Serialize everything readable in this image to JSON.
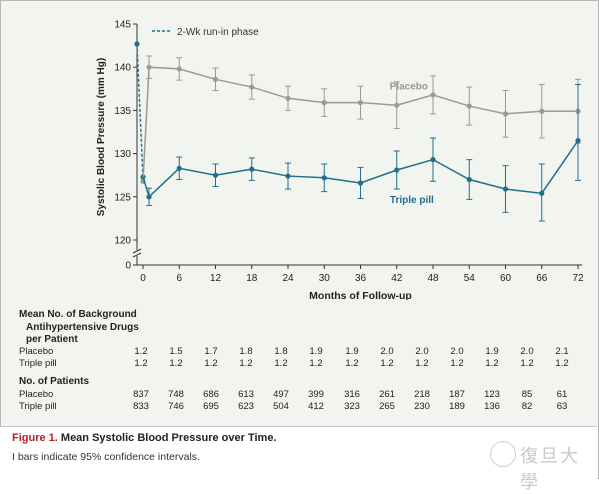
{
  "colors": {
    "placebo": "#9a9a9a",
    "triple": "#1f6f8b",
    "fig_label": "#b22222",
    "panel_bg": "#f2f4ef"
  },
  "chart_data": {
    "type": "line",
    "ylabel": "Systolic Blood Pressure (mm Hg)",
    "xlabel": "Months of Follow-up",
    "ylim": [
      0,
      145
    ],
    "y_axis_break": true,
    "yticks": [
      0,
      120,
      125,
      130,
      135,
      140,
      145
    ],
    "xticks": [
      0,
      6,
      12,
      18,
      24,
      30,
      36,
      42,
      48,
      54,
      60,
      66,
      72
    ],
    "legend_label": "2-Wk run-in phase",
    "run_in": {
      "x_start": -1,
      "start_value": 142.7,
      "placebo_end": 126.8,
      "triple_end": 127.3
    },
    "series": [
      {
        "name": "Placebo",
        "x": [
          1,
          6,
          12,
          18,
          24,
          30,
          36,
          42,
          48,
          54,
          60,
          66,
          72
        ],
        "values": [
          140.0,
          139.8,
          138.6,
          137.7,
          136.4,
          135.9,
          135.9,
          135.6,
          136.8,
          135.5,
          134.6,
          134.9,
          134.9
        ],
        "ci_low": [
          138.7,
          138.5,
          137.3,
          136.3,
          135.0,
          134.3,
          134.0,
          132.9,
          134.6,
          133.3,
          131.9,
          131.8,
          131.2
        ],
        "ci_high": [
          141.3,
          141.1,
          139.9,
          139.1,
          137.8,
          137.5,
          137.8,
          138.3,
          139.0,
          137.7,
          137.3,
          138.0,
          138.6
        ]
      },
      {
        "name": "Triple pill",
        "x": [
          1,
          6,
          12,
          18,
          24,
          30,
          36,
          42,
          48,
          54,
          60,
          66,
          72
        ],
        "values": [
          125.0,
          128.3,
          127.5,
          128.2,
          127.4,
          127.2,
          126.6,
          128.1,
          129.3,
          127.0,
          125.9,
          125.4,
          131.5
        ],
        "ci_low": [
          124.0,
          127.0,
          126.2,
          126.9,
          125.9,
          125.6,
          124.8,
          125.9,
          126.8,
          124.7,
          123.2,
          122.2,
          126.9
        ],
        "ci_high": [
          126.0,
          129.6,
          128.8,
          129.5,
          128.9,
          128.8,
          128.4,
          130.3,
          131.8,
          129.3,
          128.6,
          128.8,
          138.0
        ]
      }
    ]
  },
  "table": {
    "drugs_header": [
      "Mean No. of Background",
      "Antihypertensive Drugs",
      "per Patient"
    ],
    "patients_header": "No. of Patients",
    "drugs_rows": [
      {
        "label": "Placebo",
        "values": [
          "1.2",
          "1.5",
          "1.7",
          "1.8",
          "1.8",
          "1.9",
          "1.9",
          "2.0",
          "2.0",
          "2.0",
          "1.9",
          "2.0",
          "2.1"
        ]
      },
      {
        "label": "Triple pill",
        "values": [
          "1.2",
          "1.2",
          "1.2",
          "1.2",
          "1.2",
          "1.2",
          "1.2",
          "1.2",
          "1.2",
          "1.2",
          "1.2",
          "1.2",
          "1.2"
        ]
      }
    ],
    "patients_rows": [
      {
        "label": "Placebo",
        "values": [
          "837",
          "748",
          "686",
          "613",
          "497",
          "399",
          "316",
          "261",
          "218",
          "187",
          "123",
          "85",
          "61"
        ]
      },
      {
        "label": "Triple pill",
        "values": [
          "833",
          "746",
          "695",
          "623",
          "504",
          "412",
          "323",
          "265",
          "230",
          "189",
          "136",
          "82",
          "63"
        ]
      }
    ]
  },
  "caption": {
    "fig_label": "Figure 1.",
    "title": "Mean Systolic Blood Pressure over Time.",
    "note": "I bars indicate 95% confidence intervals."
  },
  "watermark": "復旦大學"
}
